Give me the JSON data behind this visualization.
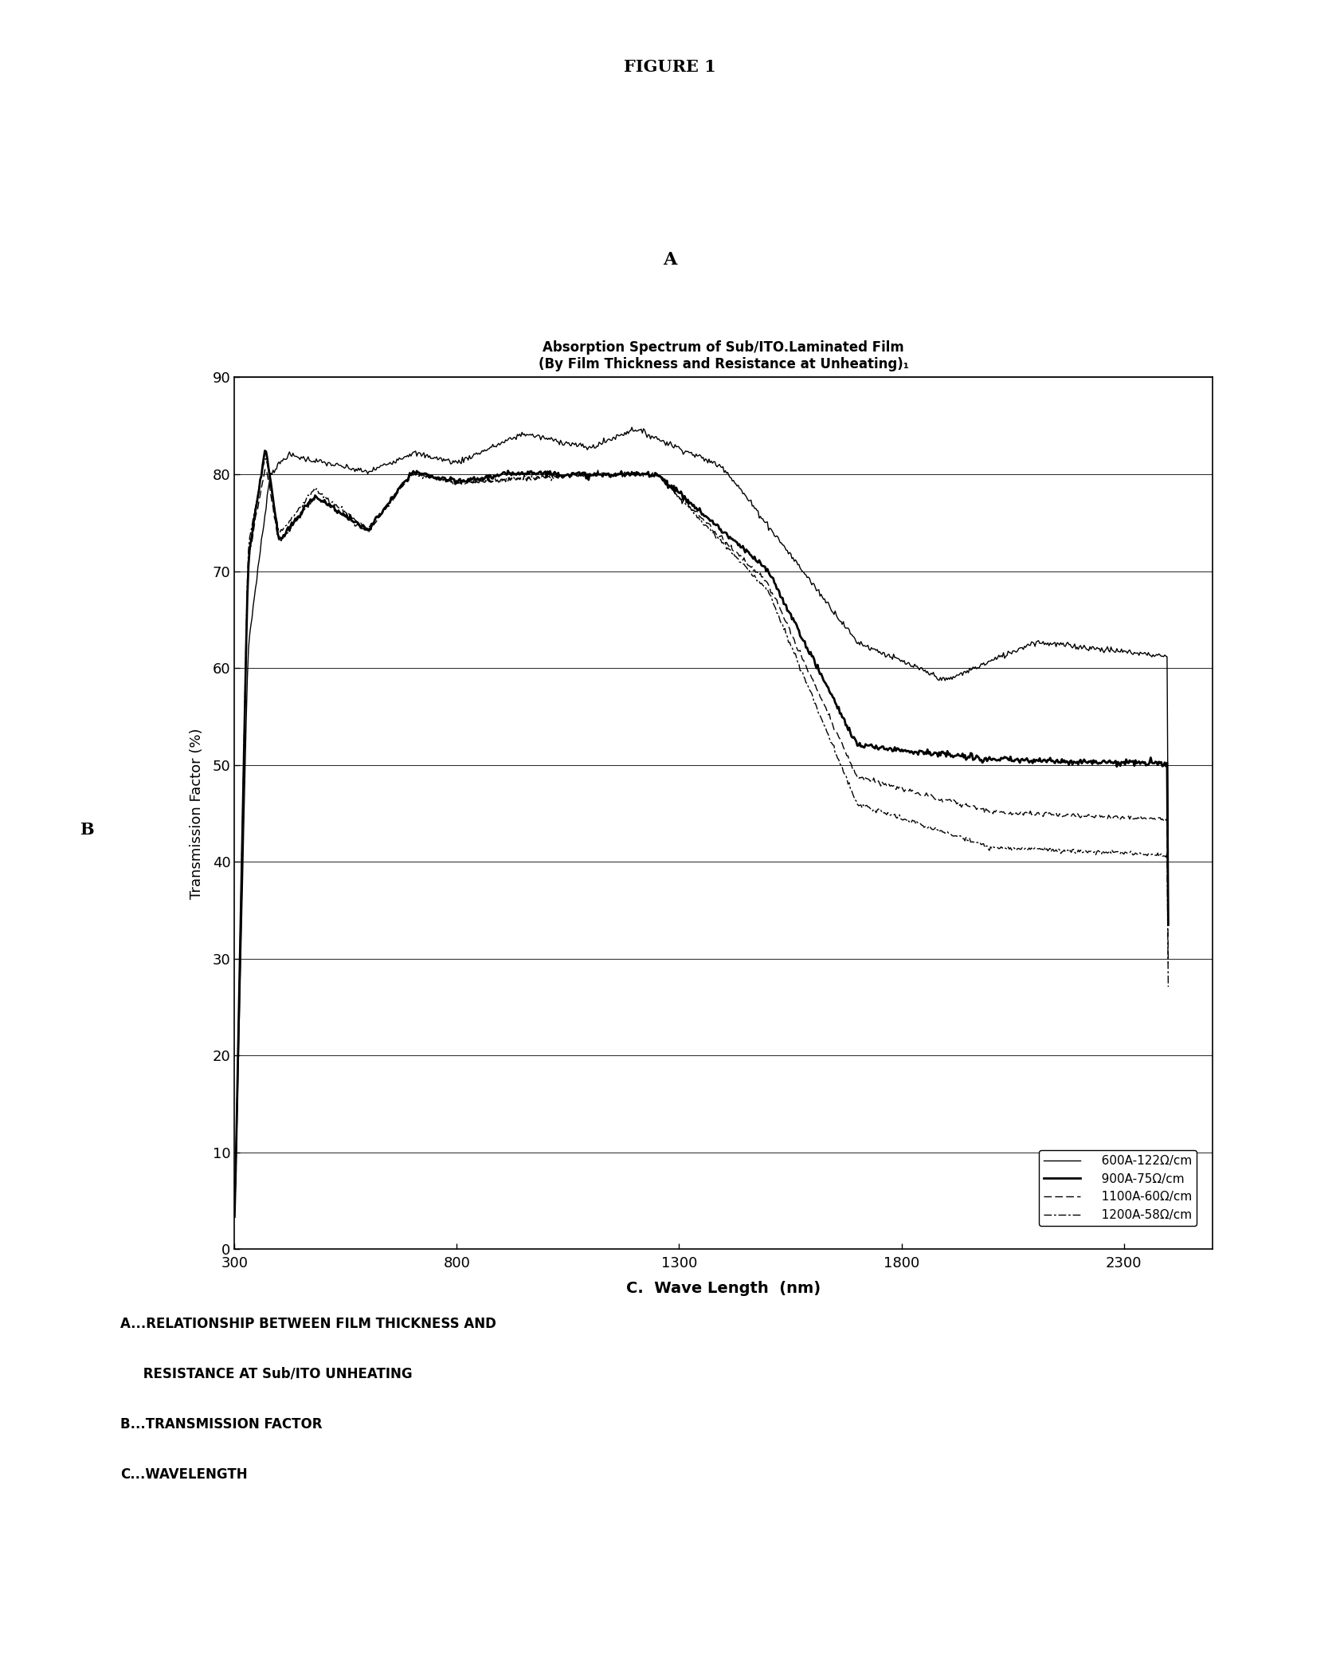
{
  "figure_title": "FIGURE 1",
  "label_A": "A",
  "chart_title_line1": "Absorption Spectrum of Sub/ITO.Laminated Film",
  "chart_title_line2": "(By Film Thickness and Resistance at Unheating)₁",
  "ylabel": "Transmission Factor (%)",
  "label_B": "B",
  "xlabel_label": "C.  Wave Length  (nm)",
  "xlim": [
    300,
    2500
  ],
  "ylim": [
    0,
    90
  ],
  "xticks": [
    300,
    800,
    1300,
    1800,
    2300
  ],
  "yticks": [
    0,
    10,
    20,
    30,
    40,
    50,
    60,
    70,
    80,
    90
  ],
  "legend_labels": [
    "   600A-122Ω/cm",
    "   900A-75Ω/cm",
    "   1100A-60Ω/cm",
    "   1200A-58Ω/cm"
  ],
  "annotation_lines": [
    "A...RELATIONSHIP BETWEEN FILM THICKNESS AND",
    "     RESISTANCE AT Sub/ITO UNHEATING",
    "B...TRANSMISSION FACTOR",
    "C...WAVELENGTH"
  ],
  "background_color": "#ffffff"
}
